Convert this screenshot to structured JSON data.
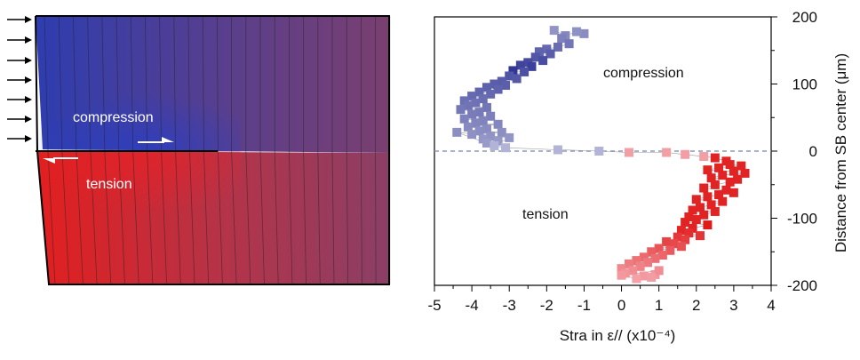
{
  "diagram": {
    "compression_label": "compression",
    "tension_label": "tension"
  },
  "colors": {
    "compression": "#3b3fa0",
    "tension": "#e02020",
    "mid": "#7a3a6a",
    "dashed_line": "#8a9ab8"
  },
  "chart_data": {
    "type": "scatter",
    "xlabel": "Stra in ε// (x10⁻⁴)",
    "ylabel": "Distance from SB center (μm)",
    "xlim": [
      -5,
      4
    ],
    "ylim": [
      -200,
      200
    ],
    "xticks": [
      "-5",
      "-4",
      "-3",
      "-2",
      "-1",
      "0",
      "1",
      "2",
      "3",
      "4"
    ],
    "yticks": [
      "200",
      "100",
      "0",
      "-100",
      "-200"
    ],
    "annotations": {
      "compression": "compression",
      "tension": "tension"
    },
    "zero_line": true,
    "points": [
      [
        -1.0,
        175
      ],
      [
        -1.2,
        178
      ],
      [
        -1.5,
        172
      ],
      [
        -1.8,
        180
      ],
      [
        -1.6,
        168
      ],
      [
        -1.4,
        160
      ],
      [
        -1.7,
        155
      ],
      [
        -2.0,
        152
      ],
      [
        -2.2,
        148
      ],
      [
        -1.9,
        145
      ],
      [
        -2.3,
        140
      ],
      [
        -2.1,
        135
      ],
      [
        -2.5,
        132
      ],
      [
        -2.7,
        128
      ],
      [
        -2.4,
        126
      ],
      [
        -2.9,
        120
      ],
      [
        -2.6,
        118
      ],
      [
        -3.0,
        112
      ],
      [
        -2.8,
        108
      ],
      [
        -3.2,
        104
      ],
      [
        -3.4,
        100
      ],
      [
        -3.1,
        98
      ],
      [
        -3.6,
        95
      ],
      [
        -3.3,
        92
      ],
      [
        -3.8,
        88
      ],
      [
        -3.5,
        85
      ],
      [
        -4.0,
        82
      ],
      [
        -3.7,
        78
      ],
      [
        -4.2,
        75
      ],
      [
        -3.9,
        72
      ],
      [
        -4.1,
        68
      ],
      [
        -3.6,
        65
      ],
      [
        -4.3,
        62
      ],
      [
        -3.8,
        58
      ],
      [
        -4.0,
        55
      ],
      [
        -3.5,
        52
      ],
      [
        -4.2,
        48
      ],
      [
        -3.7,
        45
      ],
      [
        -3.9,
        42
      ],
      [
        -3.3,
        40
      ],
      [
        -4.1,
        36
      ],
      [
        -3.6,
        33
      ],
      [
        -3.8,
        30
      ],
      [
        -3.2,
        28
      ],
      [
        -4.0,
        25
      ],
      [
        -3.5,
        22
      ],
      [
        -3.7,
        18
      ],
      [
        -3.3,
        15
      ],
      [
        -3.6,
        12
      ],
      [
        -4.4,
        28
      ],
      [
        -3.0,
        20
      ],
      [
        -3.4,
        8
      ],
      [
        -3.1,
        5
      ],
      [
        -1.7,
        2
      ],
      [
        -0.6,
        0
      ],
      [
        0.2,
        -2
      ],
      [
        1.2,
        -2
      ],
      [
        1.7,
        -5
      ],
      [
        2.2,
        -8
      ],
      [
        2.5,
        -10
      ],
      [
        2.8,
        -15
      ],
      [
        2.9,
        -20
      ],
      [
        3.2,
        -22
      ],
      [
        2.6,
        -25
      ],
      [
        2.3,
        -28
      ],
      [
        3.0,
        -30
      ],
      [
        3.3,
        -33
      ],
      [
        2.7,
        -36
      ],
      [
        2.4,
        -40
      ],
      [
        3.1,
        -42
      ],
      [
        2.9,
        -46
      ],
      [
        2.5,
        -50
      ],
      [
        2.2,
        -55
      ],
      [
        2.8,
        -58
      ],
      [
        3.0,
        -62
      ],
      [
        2.6,
        -65
      ],
      [
        2.3,
        -68
      ],
      [
        2.0,
        -72
      ],
      [
        2.7,
        -75
      ],
      [
        2.4,
        -80
      ],
      [
        2.1,
        -84
      ],
      [
        1.9,
        -88
      ],
      [
        2.5,
        -90
      ],
      [
        2.2,
        -95
      ],
      [
        1.8,
        -98
      ],
      [
        2.0,
        -102
      ],
      [
        1.7,
        -106
      ],
      [
        2.3,
        -110
      ],
      [
        1.9,
        -115
      ],
      [
        1.6,
        -118
      ],
      [
        1.8,
        -122
      ],
      [
        2.1,
        -126
      ],
      [
        1.5,
        -128
      ],
      [
        1.7,
        -132
      ],
      [
        1.2,
        -135
      ],
      [
        1.4,
        -138
      ],
      [
        1.6,
        -142
      ],
      [
        1.0,
        -145
      ],
      [
        1.3,
        -148
      ],
      [
        0.8,
        -150
      ],
      [
        1.1,
        -155
      ],
      [
        0.6,
        -158
      ],
      [
        0.9,
        -160
      ],
      [
        0.4,
        -163
      ],
      [
        0.7,
        -166
      ],
      [
        0.2,
        -168
      ],
      [
        0.5,
        -172
      ],
      [
        0.0,
        -175
      ],
      [
        0.3,
        -178
      ],
      [
        0.1,
        -182
      ],
      [
        0.6,
        -186
      ],
      [
        0.9,
        -184
      ],
      [
        0.4,
        -190
      ],
      [
        0.0,
        -185
      ],
      [
        1.0,
        -178
      ],
      [
        0.8,
        -188
      ]
    ]
  }
}
